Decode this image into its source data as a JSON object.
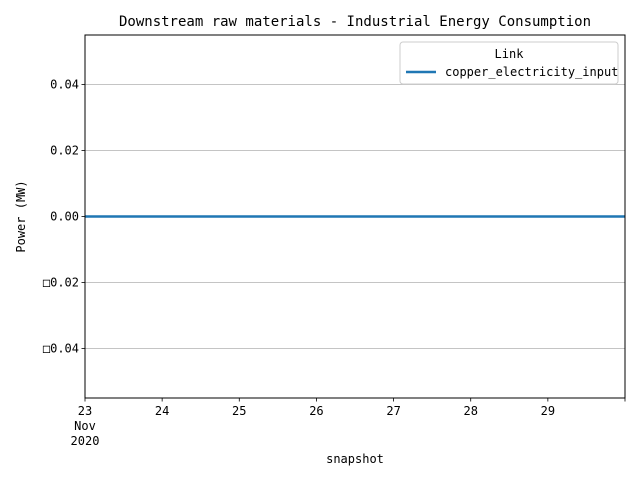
{
  "chart_data": {
    "type": "line",
    "title": "Downstream raw materials - Industrial Energy Consumption",
    "xlabel": "snapshot",
    "ylabel": "Power (MW)",
    "x_ticks": [
      "23\nNov\n2020",
      "24",
      "25",
      "26",
      "27",
      "28",
      "29"
    ],
    "x_range": [
      "2020-11-23",
      "2020-11-30"
    ],
    "y_ticks": [
      "0.04",
      "0.02",
      "0.00",
      "□0.02",
      "□0.04"
    ],
    "y_tick_values": [
      0.04,
      0.02,
      0.0,
      -0.02,
      -0.04
    ],
    "ylim": [
      -0.055,
      0.055
    ],
    "grid": "y-major",
    "legend": {
      "title": "Link",
      "placement": "top-right",
      "entries": [
        {
          "name": "copper_electricity_input",
          "color": "#1f77b4"
        }
      ]
    },
    "series": [
      {
        "name": "copper_electricity_input",
        "color": "#1f77b4",
        "x": [
          "2020-11-23",
          "2020-11-30"
        ],
        "values": [
          0.0,
          0.0
        ]
      }
    ]
  }
}
